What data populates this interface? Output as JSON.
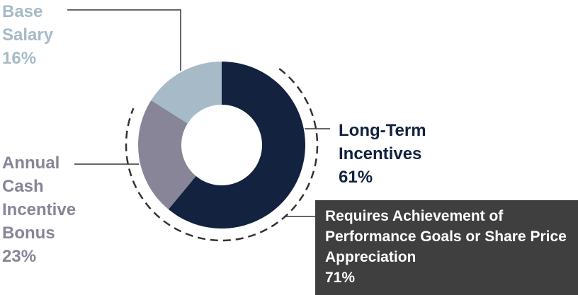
{
  "chart_data": {
    "type": "donut",
    "categories": [
      "Long-Term Incentives",
      "Annual Cash Incentive Bonus",
      "Base Salary"
    ],
    "values": [
      61,
      23,
      16
    ],
    "value_labels": [
      "61%",
      "23%",
      "16%"
    ],
    "colors": [
      "#12223f",
      "#878597",
      "#a7bac8"
    ],
    "annotation": {
      "text": "Requires Achievement of Performance Goals or Share Price Appreciation",
      "value": 71,
      "value_label": "71%"
    }
  }
}
